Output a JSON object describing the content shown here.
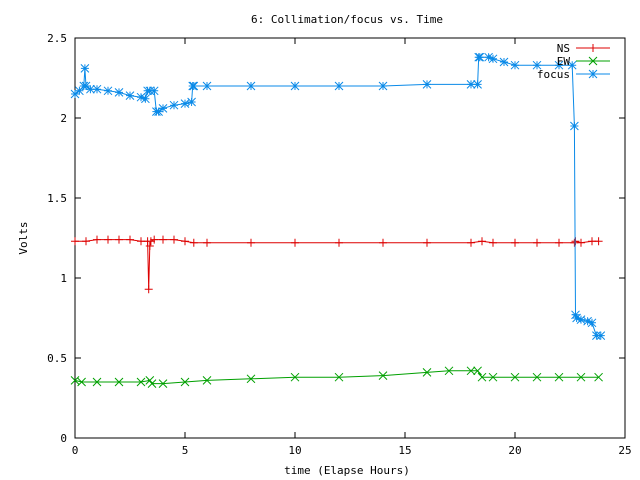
{
  "chart_data": {
    "type": "line",
    "title": "6: Collimation/focus vs. Time",
    "xlabel": "time (Elapse Hours)",
    "ylabel": "Volts",
    "xlim": [
      0,
      25
    ],
    "ylim": [
      0,
      2.5
    ],
    "x_ticks": [
      0,
      5,
      10,
      15,
      20,
      25
    ],
    "x_tick_labels": [
      "0",
      "5",
      "10",
      "15",
      "20",
      "25"
    ],
    "y_ticks": [
      0,
      0.5,
      1,
      1.5,
      2,
      2.5
    ],
    "y_tick_labels": [
      "0",
      "0.5",
      "1",
      "1.5",
      "2",
      "2.5"
    ],
    "grid": false,
    "legend_position": "top-right",
    "series": [
      {
        "name": "NS",
        "color": "#dd0000",
        "marker": "plus",
        "x": [
          0,
          0.5,
          1,
          1.5,
          2,
          2.5,
          3,
          3.3,
          3.35,
          3.4,
          3.45,
          3.6,
          4,
          4.5,
          5,
          5.4,
          6,
          8,
          10,
          12,
          14,
          16,
          18,
          18.5,
          19,
          20,
          21,
          22,
          22.7,
          22.75,
          23,
          23.5,
          23.8
        ],
        "values": [
          1.23,
          1.23,
          1.24,
          1.24,
          1.24,
          1.24,
          1.23,
          1.23,
          0.93,
          1.2,
          1.23,
          1.24,
          1.24,
          1.24,
          1.23,
          1.22,
          1.22,
          1.22,
          1.22,
          1.22,
          1.22,
          1.22,
          1.22,
          1.23,
          1.22,
          1.22,
          1.22,
          1.22,
          1.22,
          1.23,
          1.22,
          1.23,
          1.23
        ]
      },
      {
        "name": "EW",
        "color": "#00a000",
        "marker": "x",
        "x": [
          0,
          0.3,
          1,
          2,
          3,
          3.4,
          3.5,
          4,
          5,
          6,
          8,
          10,
          12,
          14,
          16,
          17,
          18,
          18.3,
          18.5,
          19,
          20,
          21,
          22,
          23,
          23.8
        ],
        "values": [
          0.36,
          0.35,
          0.35,
          0.35,
          0.35,
          0.36,
          0.34,
          0.34,
          0.35,
          0.36,
          0.37,
          0.38,
          0.38,
          0.39,
          0.41,
          0.42,
          0.42,
          0.42,
          0.38,
          0.38,
          0.38,
          0.38,
          0.38,
          0.38,
          0.38
        ]
      },
      {
        "name": "focus",
        "color": "#0a8ae8",
        "marker": "star",
        "x": [
          0,
          0.2,
          0.4,
          0.45,
          0.5,
          0.7,
          1,
          1.5,
          2,
          2.5,
          3,
          3.2,
          3.3,
          3.4,
          3.6,
          3.7,
          3.8,
          4,
          4.5,
          5,
          5.3,
          5.35,
          5.4,
          6,
          8,
          10,
          12,
          14,
          16,
          18,
          18.3,
          18.35,
          18.4,
          18.8,
          19,
          19.5,
          20,
          21,
          22,
          22.6,
          22.7,
          22.75,
          22.8,
          23,
          23.3,
          23.5,
          23.7,
          23.9
        ],
        "values": [
          2.15,
          2.17,
          2.2,
          2.31,
          2.2,
          2.18,
          2.18,
          2.17,
          2.16,
          2.14,
          2.13,
          2.12,
          2.17,
          2.17,
          2.17,
          2.04,
          2.04,
          2.06,
          2.08,
          2.09,
          2.1,
          2.2,
          2.2,
          2.2,
          2.2,
          2.2,
          2.2,
          2.2,
          2.21,
          2.21,
          2.21,
          2.38,
          2.38,
          2.38,
          2.37,
          2.35,
          2.33,
          2.33,
          2.33,
          2.33,
          1.95,
          0.77,
          0.75,
          0.74,
          0.73,
          0.72,
          0.64,
          0.64
        ]
      }
    ]
  }
}
